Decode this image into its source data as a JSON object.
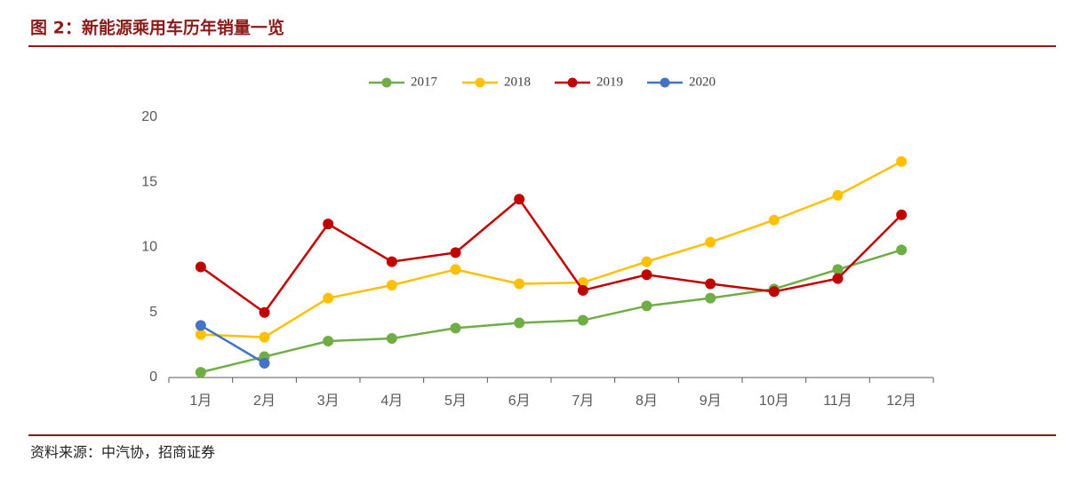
{
  "chart_data": {
    "type": "line",
    "title": "图 2：新能源乘用车历年销量一览",
    "source": "资料来源：中汽协，招商证券",
    "categories": [
      "1月",
      "2月",
      "3月",
      "4月",
      "5月",
      "6月",
      "7月",
      "8月",
      "9月",
      "10月",
      "11月",
      "12月"
    ],
    "series": [
      {
        "name": "2017",
        "color": "#70ad47",
        "values": [
          0.4,
          1.6,
          2.8,
          3.0,
          3.8,
          4.2,
          4.4,
          5.5,
          6.1,
          6.8,
          8.3,
          9.8
        ]
      },
      {
        "name": "2018",
        "color": "#ffc000",
        "values": [
          3.3,
          3.1,
          6.1,
          7.1,
          8.3,
          7.2,
          7.3,
          8.9,
          10.4,
          12.1,
          14.0,
          16.6
        ]
      },
      {
        "name": "2019",
        "color": "#c00000",
        "values": [
          8.5,
          5.0,
          11.8,
          8.9,
          9.6,
          13.7,
          6.7,
          7.9,
          7.2,
          6.6,
          7.6,
          12.5
        ]
      },
      {
        "name": "2020",
        "color": "#4472c4",
        "values": [
          4.0,
          1.1,
          null,
          null,
          null,
          null,
          null,
          null,
          null,
          null,
          null,
          null
        ]
      }
    ],
    "ylim": [
      0,
      20
    ],
    "yticks": [
      0,
      5,
      10,
      15,
      20
    ],
    "grid": false,
    "legend": "top"
  }
}
